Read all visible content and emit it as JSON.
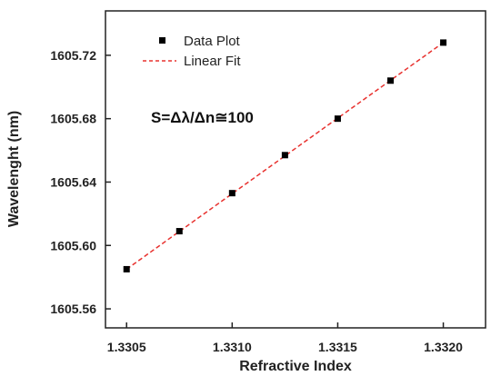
{
  "chart_data": {
    "type": "scatter",
    "xlabel": "Refractive Index",
    "ylabel": "Wavelenght (nm)",
    "xlim": [
      1.3304,
      1.3322
    ],
    "ylim": [
      1605.548,
      1605.748
    ],
    "xticks": [
      1.3305,
      1.331,
      1.3315,
      1.332
    ],
    "xtick_labels": [
      "1.3305",
      "1.3310",
      "1.3315",
      "1.3320"
    ],
    "yticks": [
      1605.56,
      1605.6,
      1605.64,
      1605.68,
      1605.72
    ],
    "ytick_labels": [
      "1605.56",
      "1605.60",
      "1605.64",
      "1605.68",
      "1605.72"
    ],
    "series": [
      {
        "name": "Data Plot",
        "kind": "scatter",
        "marker": "square",
        "color": "#000000",
        "x": [
          1.3305,
          1.33075,
          1.331,
          1.33125,
          1.3315,
          1.33175,
          1.332
        ],
        "y": [
          1605.585,
          1605.609,
          1605.633,
          1605.657,
          1605.68,
          1605.704,
          1605.728
        ]
      },
      {
        "name": "Linear Fit",
        "kind": "line",
        "style": "dashed",
        "color": "#e8322f",
        "x": [
          1.3305,
          1.332
        ],
        "y": [
          1605.585,
          1605.728
        ]
      }
    ],
    "annotation": "S=Δλ/Δn≅100",
    "legend": {
      "position": "top-left",
      "entries": [
        "Data Plot",
        "Linear Fit"
      ]
    },
    "grid": false
  }
}
